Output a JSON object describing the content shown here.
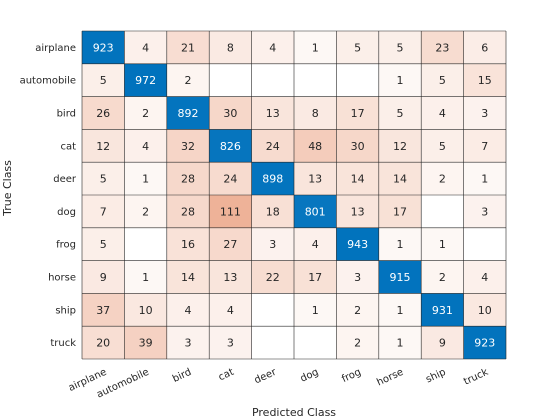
{
  "chart_data": {
    "type": "heatmap",
    "title": "",
    "xlabel": "Predicted Class",
    "ylabel": "True Class",
    "x_categories": [
      "airplane",
      "automobile",
      "bird",
      "cat",
      "deer",
      "dog",
      "frog",
      "horse",
      "ship",
      "truck"
    ],
    "y_categories": [
      "airplane",
      "automobile",
      "bird",
      "cat",
      "deer",
      "dog",
      "frog",
      "horse",
      "ship",
      "truck"
    ],
    "values": [
      [
        923,
        4,
        21,
        8,
        4,
        1,
        5,
        5,
        23,
        6
      ],
      [
        5,
        972,
        2,
        null,
        null,
        null,
        null,
        1,
        5,
        15
      ],
      [
        26,
        2,
        892,
        30,
        13,
        8,
        17,
        5,
        4,
        3
      ],
      [
        12,
        4,
        32,
        826,
        24,
        48,
        30,
        12,
        5,
        7
      ],
      [
        5,
        1,
        28,
        24,
        898,
        13,
        14,
        14,
        2,
        1
      ],
      [
        7,
        2,
        28,
        111,
        18,
        801,
        13,
        17,
        null,
        3
      ],
      [
        5,
        null,
        16,
        27,
        3,
        4,
        943,
        1,
        1,
        null
      ],
      [
        9,
        1,
        14,
        13,
        22,
        17,
        3,
        915,
        2,
        4
      ],
      [
        37,
        10,
        4,
        4,
        null,
        1,
        2,
        1,
        931,
        10
      ],
      [
        20,
        39,
        3,
        3,
        null,
        null,
        2,
        1,
        9,
        923
      ]
    ],
    "grid": true,
    "colors": {
      "diagonal": "#0072bd",
      "off_diagonal_max": "#d95319",
      "text_dark": "#262626",
      "text_light": "#ffffff",
      "grid_line": "#262626"
    }
  }
}
